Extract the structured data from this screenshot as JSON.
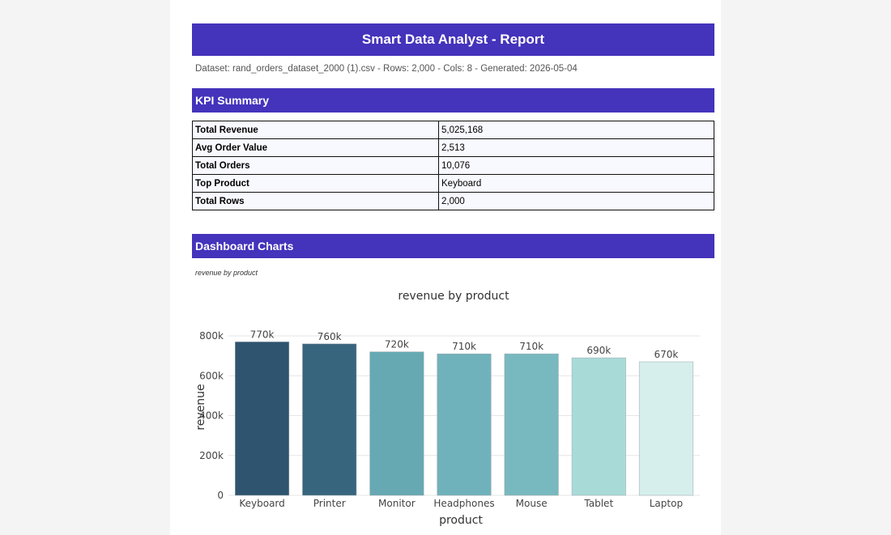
{
  "report": {
    "title": "Smart Data Analyst - Report",
    "meta": "Dataset: rand_orders_dataset_2000 (1).csv  -  Rows: 2,000  -  Cols: 8  -  Generated: 2026-05-04"
  },
  "kpi": {
    "heading": "KPI Summary",
    "rows": [
      {
        "label": "Total Revenue",
        "value": "5,025,168"
      },
      {
        "label": "Avg Order Value",
        "value": "2,513"
      },
      {
        "label": "Total Orders",
        "value": "10,076"
      },
      {
        "label": "Top Product",
        "value": "Keyboard"
      },
      {
        "label": "Total Rows",
        "value": "2,000"
      }
    ]
  },
  "charts_section": {
    "heading": "Dashboard Charts",
    "caption": "revenue by product"
  },
  "colors": {
    "header": "#4433bb",
    "bars": [
      "#2e5470",
      "#38657e",
      "#66a9b3",
      "#70b2bb",
      "#78b9bf",
      "#a8dbd8",
      "#d6efec"
    ]
  },
  "chart_data": {
    "type": "bar",
    "title": "revenue by product",
    "xlabel": "product",
    "ylabel": "revenue",
    "categories": [
      "Keyboard",
      "Printer",
      "Monitor",
      "Headphones",
      "Mouse",
      "Tablet",
      "Laptop"
    ],
    "values": [
      770000,
      760000,
      720000,
      710000,
      710000,
      690000,
      670000
    ],
    "data_labels": [
      "770k",
      "760k",
      "720k",
      "710k",
      "710k",
      "690k",
      "670k"
    ],
    "yticks": [
      0,
      200000,
      400000,
      600000,
      800000
    ],
    "ytick_labels": [
      "0",
      "200k",
      "400k",
      "600k",
      "800k"
    ],
    "ylim": [
      0,
      800000
    ],
    "grid": true
  }
}
